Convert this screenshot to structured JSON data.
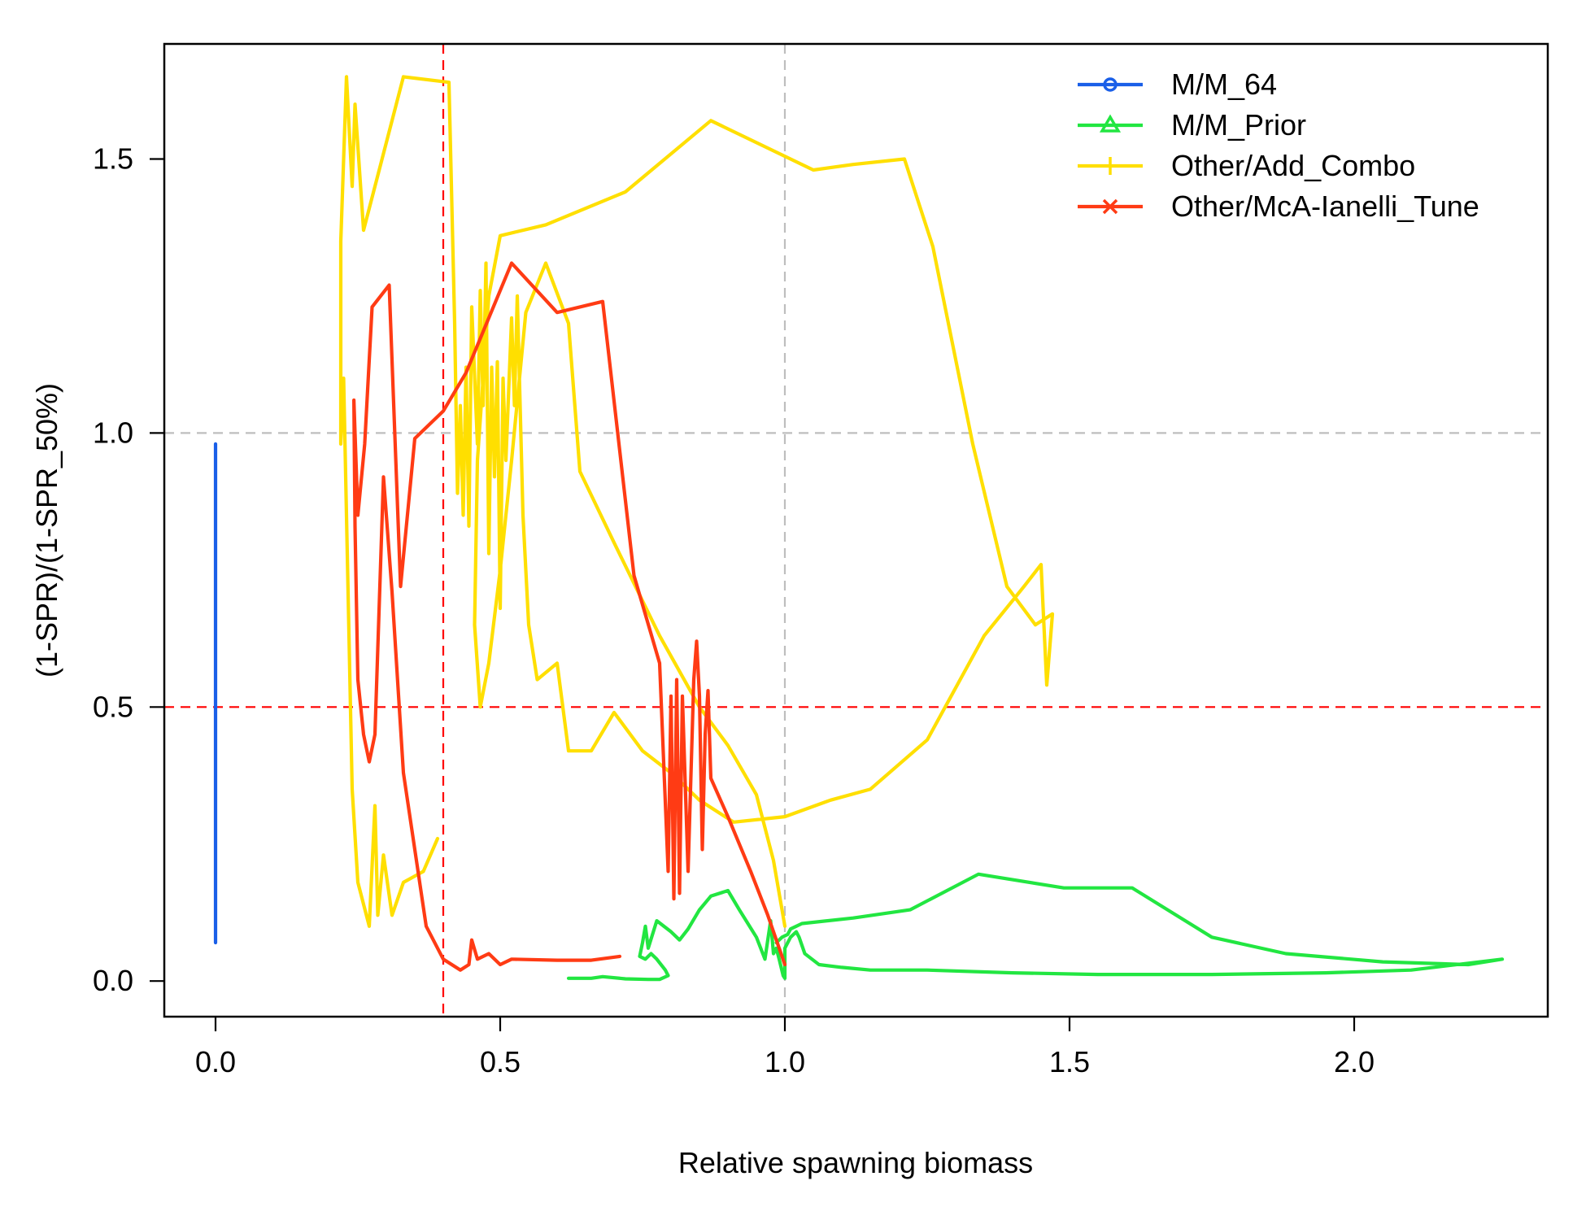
{
  "chart_data": {
    "type": "line",
    "title": "",
    "xlabel": "Relative spawning biomass",
    "ylabel": "(1-SPR)/(1-SPR_50%)",
    "xlim": [
      -0.09,
      2.34
    ],
    "ylim": [
      -0.065,
      1.71
    ],
    "x_ticks": [
      0.0,
      0.5,
      1.0,
      1.5,
      2.0
    ],
    "x_tick_labels": [
      "0.0",
      "0.5",
      "1.0",
      "1.5",
      "2.0"
    ],
    "y_ticks": [
      0.0,
      0.5,
      1.0,
      1.5
    ],
    "y_tick_labels": [
      "0.0",
      "0.5",
      "1.0",
      "1.5"
    ],
    "reference_lines": [
      {
        "axis": "x",
        "value": 0.4,
        "color": "#ff0000",
        "style": "dashed"
      },
      {
        "axis": "x",
        "value": 1.0,
        "color": "#bebebe",
        "style": "dashed"
      },
      {
        "axis": "y",
        "value": 0.5,
        "color": "#ff0000",
        "style": "dashed"
      },
      {
        "axis": "y",
        "value": 1.0,
        "color": "#bebebe",
        "style": "dashed"
      }
    ],
    "legend_position": "top-right",
    "series": [
      {
        "name": "M/M_64",
        "color": "#1a5fe8",
        "marker": "circle",
        "points": [
          [
            0.0,
            0.98
          ],
          [
            0.0,
            0.07
          ]
        ]
      },
      {
        "name": "M/M_Prior",
        "color": "#22e641",
        "marker": "triangle",
        "points": [
          [
            0.62,
            0.005
          ],
          [
            0.66,
            0.005
          ],
          [
            0.68,
            0.008
          ],
          [
            0.72,
            0.004
          ],
          [
            0.76,
            0.003
          ],
          [
            0.78,
            0.003
          ],
          [
            0.795,
            0.01
          ],
          [
            0.79,
            0.02
          ],
          [
            0.775,
            0.04
          ],
          [
            0.765,
            0.05
          ],
          [
            0.755,
            0.04
          ],
          [
            0.745,
            0.045
          ],
          [
            0.75,
            0.07
          ],
          [
            0.755,
            0.1
          ],
          [
            0.76,
            0.06
          ],
          [
            0.775,
            0.11
          ],
          [
            0.8,
            0.09
          ],
          [
            0.815,
            0.075
          ],
          [
            0.83,
            0.095
          ],
          [
            0.85,
            0.13
          ],
          [
            0.87,
            0.155
          ],
          [
            0.9,
            0.165
          ],
          [
            0.92,
            0.13
          ],
          [
            0.95,
            0.08
          ],
          [
            0.965,
            0.04
          ],
          [
            0.975,
            0.11
          ],
          [
            0.98,
            0.05
          ],
          [
            0.985,
            0.06
          ],
          [
            0.99,
            0.04
          ],
          [
            0.997,
            0.01
          ],
          [
            1.0,
            0.005
          ],
          [
            1.0,
            0.06
          ],
          [
            1.01,
            0.08
          ],
          [
            1.02,
            0.09
          ],
          [
            1.025,
            0.08
          ],
          [
            1.035,
            0.05
          ],
          [
            1.06,
            0.03
          ],
          [
            1.1,
            0.025
          ],
          [
            1.15,
            0.02
          ],
          [
            1.25,
            0.02
          ],
          [
            1.4,
            0.015
          ],
          [
            1.55,
            0.012
          ],
          [
            1.75,
            0.012
          ],
          [
            1.95,
            0.015
          ],
          [
            2.1,
            0.02
          ],
          [
            2.26,
            0.04
          ],
          [
            2.2,
            0.03
          ],
          [
            2.05,
            0.035
          ],
          [
            1.88,
            0.05
          ],
          [
            1.75,
            0.08
          ],
          [
            1.61,
            0.17
          ],
          [
            1.49,
            0.17
          ],
          [
            1.34,
            0.195
          ],
          [
            1.22,
            0.13
          ],
          [
            1.12,
            0.115
          ],
          [
            1.03,
            0.105
          ],
          [
            1.01,
            0.095
          ],
          [
            1.005,
            0.085
          ],
          [
            0.995,
            0.08
          ],
          [
            0.985,
            0.07
          ]
        ]
      },
      {
        "name": "Other/Add_Combo",
        "color": "#ffdf00",
        "marker": "plus",
        "points": [
          [
            0.39,
            0.26
          ],
          [
            0.365,
            0.2
          ],
          [
            0.33,
            0.18
          ],
          [
            0.31,
            0.12
          ],
          [
            0.295,
            0.23
          ],
          [
            0.285,
            0.12
          ],
          [
            0.28,
            0.32
          ],
          [
            0.27,
            0.1
          ],
          [
            0.25,
            0.18
          ],
          [
            0.24,
            0.35
          ],
          [
            0.232,
            0.75
          ],
          [
            0.225,
            1.1
          ],
          [
            0.22,
            0.98
          ],
          [
            0.22,
            1.35
          ],
          [
            0.23,
            1.65
          ],
          [
            0.24,
            1.45
          ],
          [
            0.245,
            1.6
          ],
          [
            0.26,
            1.37
          ],
          [
            0.33,
            1.65
          ],
          [
            0.41,
            1.64
          ],
          [
            0.42,
            1.2
          ],
          [
            0.425,
            0.89
          ],
          [
            0.43,
            1.05
          ],
          [
            0.435,
            0.85
          ],
          [
            0.44,
            1.12
          ],
          [
            0.445,
            0.83
          ],
          [
            0.45,
            1.23
          ],
          [
            0.46,
            0.98
          ],
          [
            0.465,
            1.26
          ],
          [
            0.47,
            1.05
          ],
          [
            0.475,
            1.31
          ],
          [
            0.48,
            0.78
          ],
          [
            0.485,
            1.12
          ],
          [
            0.49,
            0.92
          ],
          [
            0.495,
            1.13
          ],
          [
            0.5,
            0.68
          ],
          [
            0.505,
            1.1
          ],
          [
            0.51,
            0.95
          ],
          [
            0.52,
            1.21
          ],
          [
            0.525,
            1.05
          ],
          [
            0.53,
            1.25
          ],
          [
            0.54,
            0.85
          ],
          [
            0.55,
            0.65
          ],
          [
            0.565,
            0.55
          ],
          [
            0.6,
            0.58
          ],
          [
            0.62,
            0.42
          ],
          [
            0.66,
            0.42
          ],
          [
            0.7,
            0.49
          ],
          [
            0.75,
            0.42
          ],
          [
            0.8,
            0.38
          ],
          [
            0.85,
            0.33
          ],
          [
            0.91,
            0.29
          ],
          [
            1.0,
            0.3
          ],
          [
            1.08,
            0.33
          ],
          [
            1.15,
            0.35
          ],
          [
            1.25,
            0.44
          ],
          [
            1.35,
            0.63
          ],
          [
            1.42,
            0.72
          ],
          [
            1.45,
            0.76
          ],
          [
            1.46,
            0.54
          ],
          [
            1.47,
            0.67
          ],
          [
            1.44,
            0.65
          ],
          [
            1.39,
            0.72
          ],
          [
            1.33,
            0.98
          ],
          [
            1.26,
            1.34
          ],
          [
            1.21,
            1.5
          ],
          [
            1.12,
            1.49
          ],
          [
            1.05,
            1.48
          ],
          [
            0.87,
            1.57
          ],
          [
            0.72,
            1.44
          ],
          [
            0.58,
            1.38
          ],
          [
            0.5,
            1.36
          ],
          [
            0.48,
            1.25
          ],
          [
            0.46,
            0.95
          ],
          [
            0.455,
            0.65
          ],
          [
            0.465,
            0.5
          ],
          [
            0.48,
            0.58
          ],
          [
            0.5,
            0.75
          ],
          [
            0.52,
            0.95
          ],
          [
            0.545,
            1.22
          ],
          [
            0.58,
            1.31
          ],
          [
            0.62,
            1.2
          ],
          [
            0.64,
            0.93
          ],
          [
            0.7,
            0.8
          ],
          [
            0.78,
            0.63
          ],
          [
            0.85,
            0.5
          ],
          [
            0.9,
            0.43
          ],
          [
            0.95,
            0.34
          ],
          [
            0.98,
            0.22
          ],
          [
            1.0,
            0.1
          ]
        ]
      },
      {
        "name": "Other/McA-Ianelli_Tune",
        "color": "#ff3b14",
        "marker": "x",
        "points": [
          [
            0.71,
            0.045
          ],
          [
            0.66,
            0.038
          ],
          [
            0.6,
            0.038
          ],
          [
            0.52,
            0.04
          ],
          [
            0.5,
            0.03
          ],
          [
            0.48,
            0.05
          ],
          [
            0.46,
            0.04
          ],
          [
            0.45,
            0.075
          ],
          [
            0.445,
            0.03
          ],
          [
            0.43,
            0.02
          ],
          [
            0.4,
            0.04
          ],
          [
            0.37,
            0.1
          ],
          [
            0.33,
            0.38
          ],
          [
            0.31,
            0.71
          ],
          [
            0.295,
            0.92
          ],
          [
            0.28,
            0.45
          ],
          [
            0.27,
            0.4
          ],
          [
            0.26,
            0.45
          ],
          [
            0.25,
            0.55
          ],
          [
            0.245,
            0.83
          ],
          [
            0.243,
            1.06
          ],
          [
            0.25,
            0.85
          ],
          [
            0.262,
            0.98
          ],
          [
            0.275,
            1.23
          ],
          [
            0.305,
            1.27
          ],
          [
            0.325,
            0.72
          ],
          [
            0.35,
            0.99
          ],
          [
            0.4,
            1.04
          ],
          [
            0.44,
            1.11
          ],
          [
            0.52,
            1.31
          ],
          [
            0.6,
            1.22
          ],
          [
            0.68,
            1.24
          ],
          [
            0.735,
            0.74
          ],
          [
            0.78,
            0.58
          ],
          [
            0.795,
            0.2
          ],
          [
            0.8,
            0.52
          ],
          [
            0.805,
            0.15
          ],
          [
            0.81,
            0.55
          ],
          [
            0.815,
            0.16
          ],
          [
            0.82,
            0.52
          ],
          [
            0.83,
            0.2
          ],
          [
            0.84,
            0.55
          ],
          [
            0.845,
            0.62
          ],
          [
            0.85,
            0.52
          ],
          [
            0.855,
            0.24
          ],
          [
            0.86,
            0.45
          ],
          [
            0.865,
            0.53
          ],
          [
            0.87,
            0.37
          ],
          [
            0.9,
            0.3
          ],
          [
            0.94,
            0.2
          ],
          [
            0.97,
            0.12
          ],
          [
            0.99,
            0.06
          ],
          [
            1.0,
            0.03
          ]
        ]
      }
    ]
  }
}
